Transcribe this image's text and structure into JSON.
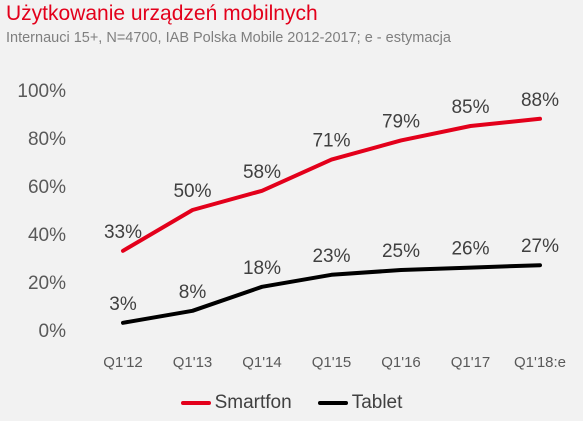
{
  "header": {
    "title": "Użytkowanie urządzeń mobilnych",
    "subtitle": "Internauci 15+, N=4700, IAB Polska Mobile 2012-2017; e - estymacja"
  },
  "chart_data": {
    "type": "line",
    "title": "Użytkowanie urządzeń mobilnych",
    "subtitle": "Internauci 15+, N=4700, IAB Polska Mobile 2012-2017; e - estymacja",
    "xlabel": "",
    "ylabel": "",
    "categories": [
      "Q1'12",
      "Q1'13",
      "Q1'14",
      "Q1'15",
      "Q1'16",
      "Q1'17",
      "Q1'18:e"
    ],
    "ylim": [
      0,
      100
    ],
    "yticks": [
      0,
      20,
      40,
      60,
      80,
      100
    ],
    "ytick_labels": [
      "0%",
      "20%",
      "40%",
      "60%",
      "80%",
      "100%"
    ],
    "grid": false,
    "legend": "bottom",
    "series": [
      {
        "name": "Smartfon",
        "color": "#e3001b",
        "values": [
          33,
          50,
          58,
          71,
          79,
          85,
          88
        ],
        "labels": [
          "33%",
          "50%",
          "58%",
          "71%",
          "79%",
          "85%",
          "88%"
        ]
      },
      {
        "name": "Tablet",
        "color": "#000000",
        "values": [
          3,
          8,
          18,
          23,
          25,
          26,
          27
        ],
        "labels": [
          "3%",
          "8%",
          "18%",
          "23%",
          "25%",
          "26%",
          "27%"
        ]
      }
    ]
  }
}
